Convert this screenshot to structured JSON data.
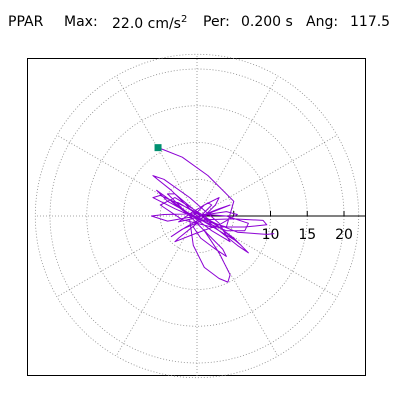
{
  "header": {
    "label": "PPAR",
    "max_label": "Max:",
    "max_value": "22.0 cm/s",
    "max_exponent": "2",
    "per_label": "Per:",
    "per_value": "0.200 s",
    "ang_label": "Ang:",
    "ang_value": "117.5"
  },
  "colors": {
    "trace": "#8c00d4",
    "start_marker": "#009070",
    "grid": "#888888",
    "axis": "#000000"
  },
  "chart_data": {
    "type": "polar-hodogram",
    "title": "",
    "radial_ticks": [
      5,
      10,
      15,
      20
    ],
    "radial_tick_labels": [
      "10",
      "15",
      "20"
    ],
    "radial_max": 22,
    "grid": "dotted rings and spokes every 30 degrees",
    "start_point": [
      -5.3,
      9.3
    ],
    "trace": [
      [
        -5.3,
        9.3
      ],
      [
        -4.5,
        9.0
      ],
      [
        -2.0,
        8.0
      ],
      [
        1.5,
        5.5
      ],
      [
        5.0,
        2.0
      ],
      [
        4.0,
        -1.5
      ],
      [
        0.5,
        -0.5
      ],
      [
        -3.5,
        3.5
      ],
      [
        -6.0,
        5.5
      ],
      [
        -4.5,
        5.0
      ],
      [
        -1.0,
        2.5
      ],
      [
        3.0,
        -1.0
      ],
      [
        4.5,
        -3.5
      ],
      [
        2.0,
        -2.0
      ],
      [
        -2.0,
        1.0
      ],
      [
        -5.5,
        3.5
      ],
      [
        -4.0,
        2.0
      ],
      [
        0.5,
        -0.5
      ],
      [
        5.5,
        -3.5
      ],
      [
        6.0,
        -4.0
      ],
      [
        3.0,
        -1.5
      ],
      [
        -1.0,
        1.0
      ],
      [
        -5.0,
        2.8
      ],
      [
        -6.0,
        2.5
      ],
      [
        -3.0,
        1.0
      ],
      [
        1.5,
        -1.0
      ],
      [
        4.0,
        -2.0
      ],
      [
        6.5,
        -2.0
      ],
      [
        7.0,
        -1.0
      ],
      [
        4.0,
        0.0
      ],
      [
        0.0,
        0.3
      ],
      [
        -4.5,
        0.2
      ],
      [
        -6.2,
        0.0
      ],
      [
        -4.0,
        -0.7
      ],
      [
        0.0,
        0.0
      ],
      [
        4.0,
        0.6
      ],
      [
        5.5,
        0.2
      ],
      [
        3.0,
        -1.2
      ],
      [
        -0.5,
        -2.5
      ],
      [
        -3.0,
        -3.5
      ],
      [
        -2.5,
        -3.0
      ],
      [
        0.0,
        -1.0
      ],
      [
        2.5,
        1.5
      ],
      [
        3.0,
        2.5
      ],
      [
        1.0,
        1.5
      ],
      [
        -1.0,
        -0.5
      ],
      [
        -0.5,
        -4.0
      ],
      [
        1.0,
        -7.0
      ],
      [
        3.0,
        -8.5
      ],
      [
        4.2,
        -9.0
      ],
      [
        4.5,
        -8.0
      ],
      [
        3.0,
        -5.0
      ],
      [
        1.0,
        -2.0
      ],
      [
        -1.5,
        0.5
      ],
      [
        -4.0,
        3.0
      ],
      [
        -3.0,
        3.0
      ],
      [
        0.0,
        0.5
      ],
      [
        3.0,
        -2.0
      ],
      [
        5.5,
        -4.0
      ],
      [
        7.0,
        -5.0
      ],
      [
        5.0,
        -3.0
      ],
      [
        1.0,
        0.0
      ],
      [
        -3.0,
        2.5
      ],
      [
        -5.0,
        1.5
      ],
      [
        -2.0,
        -0.5
      ],
      [
        2.0,
        -1.5
      ],
      [
        6.5,
        -1.5
      ],
      [
        9.5,
        -1.2
      ],
      [
        9.0,
        -0.6
      ],
      [
        5.0,
        -0.4
      ],
      [
        1.0,
        -0.5
      ],
      [
        -2.0,
        -1.8
      ],
      [
        -3.5,
        -2.8
      ],
      [
        -1.5,
        -1.5
      ],
      [
        2.0,
        0.5
      ],
      [
        4.5,
        1.5
      ],
      [
        3.0,
        1.0
      ],
      [
        0.0,
        -0.2
      ],
      [
        -2.5,
        -0.8
      ],
      [
        -1.0,
        0.3
      ],
      [
        1.5,
        1.8
      ],
      [
        2.0,
        1.5
      ],
      [
        0.5,
        0.0
      ],
      [
        -0.5,
        -1.5
      ],
      [
        0.5,
        -3.0
      ],
      [
        2.5,
        -4.5
      ],
      [
        4.0,
        -5.5
      ],
      [
        3.5,
        -4.5
      ],
      [
        1.5,
        -2.5
      ],
      [
        -1.0,
        0.0
      ],
      [
        -3.5,
        2.0
      ],
      [
        -2.5,
        1.8
      ],
      [
        0.0,
        0.3
      ],
      [
        2.5,
        -1.0
      ],
      [
        5.5,
        -2.2
      ],
      [
        8.0,
        -2.4
      ],
      [
        9.5,
        -2.5
      ],
      [
        10.5,
        -2.4
      ]
    ]
  }
}
